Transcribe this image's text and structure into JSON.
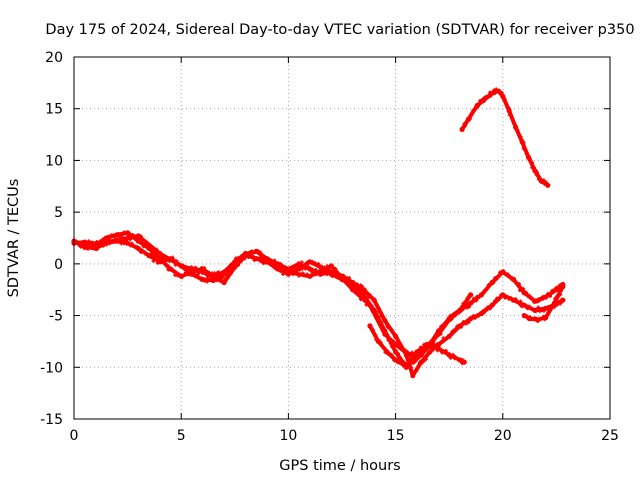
{
  "chart_data": {
    "type": "scatter",
    "title": "Day 175 of 2024, Sidereal Day-to-day VTEC variation (SDTVAR) for receiver p350",
    "xlabel": "GPS time / hours",
    "ylabel": "SDTVAR / TECUs",
    "xlim": [
      0,
      25
    ],
    "ylim": [
      -15,
      20
    ],
    "xticks": [
      0,
      5,
      10,
      15,
      20,
      25
    ],
    "yticks": [
      -15,
      -10,
      -5,
      0,
      5,
      10,
      15,
      20
    ],
    "grid": true,
    "series_color": "#ff0000",
    "series": [
      {
        "name": "trace-a",
        "x": [
          0,
          0.5,
          1,
          1.5,
          2,
          2.5,
          3,
          3.5,
          4,
          4.5,
          5,
          5.5,
          6,
          6.5,
          7,
          7.5,
          8,
          8.5,
          9,
          9.5,
          10,
          10.5,
          11,
          11.5,
          12,
          12.5,
          13,
          13.5,
          14,
          14.5,
          15,
          15.5,
          16,
          16.5,
          17,
          17.5,
          18,
          18.2
        ],
        "y": [
          2.0,
          2.1,
          1.8,
          2.5,
          2.8,
          3.0,
          2.2,
          1.5,
          0.5,
          -0.5,
          -1.2,
          -0.8,
          -0.5,
          -1.2,
          -0.8,
          0.2,
          1.0,
          0.5,
          0.2,
          -0.5,
          -1.0,
          -0.5,
          0.2,
          -0.3,
          -1.0,
          -1.5,
          -2.0,
          -3.0,
          -4.5,
          -6.5,
          -8.5,
          -10.0,
          -8.5,
          -7.8,
          -8.2,
          -8.8,
          -9.3,
          -9.5
        ]
      },
      {
        "name": "trace-b",
        "x": [
          0,
          0.5,
          1,
          1.5,
          2,
          2.5,
          3,
          3.5,
          4,
          4.5,
          5,
          5.5,
          6,
          6.5,
          7,
          7.5,
          8,
          8.5,
          9,
          9.5,
          10,
          10.5,
          11,
          11.5,
          12,
          12.5,
          13,
          13.5,
          14,
          14.5,
          15,
          15.5,
          15.8,
          16.2,
          16.6,
          17,
          17.5,
          18,
          18.5,
          19,
          19.5,
          20,
          20.5,
          21,
          21.5,
          22,
          22.5,
          22.8
        ],
        "y": [
          2.2,
          1.6,
          1.5,
          2.0,
          2.2,
          2.0,
          1.5,
          0.8,
          0.2,
          0.5,
          -0.2,
          -1.0,
          -1.5,
          -1.6,
          -1.0,
          0.0,
          0.8,
          1.2,
          0.5,
          0.0,
          -0.5,
          0.0,
          -0.5,
          -1.0,
          -0.8,
          -1.2,
          -1.8,
          -2.5,
          -3.5,
          -5.5,
          -7.0,
          -8.8,
          -10.8,
          -9.5,
          -8.5,
          -7.8,
          -7.0,
          -6.0,
          -5.3,
          -4.8,
          -4.0,
          -3.0,
          -3.5,
          -4.0,
          -4.5,
          -4.3,
          -3.9,
          -3.5
        ]
      },
      {
        "name": "trace-c",
        "x": [
          0.3,
          1,
          2,
          3,
          4,
          5,
          6,
          7,
          7.5,
          8,
          9,
          10,
          11,
          12,
          13,
          13.8,
          14.5,
          15,
          15.5,
          16,
          16.5,
          17,
          17.5,
          18,
          18.5,
          19,
          19.5,
          20,
          20.5,
          21,
          21.5,
          22,
          22.5,
          22.8
        ],
        "y": [
          1.8,
          1.8,
          2.3,
          2.7,
          1.0,
          -0.2,
          -0.8,
          -1.8,
          -0.3,
          0.8,
          0.3,
          -0.8,
          -1.2,
          -0.2,
          -2.5,
          -4.0,
          -6.8,
          -7.8,
          -8.6,
          -9.0,
          -8.0,
          -6.8,
          -5.4,
          -4.5,
          -3.8,
          -3.0,
          -1.8,
          -0.8,
          -1.5,
          -2.8,
          -3.6,
          -3.2,
          -2.5,
          -2.0
        ]
      },
      {
        "name": "trace-d",
        "x": [
          13.8,
          14.2,
          14.6,
          15.0,
          15.4,
          15.8,
          16.2,
          16.6,
          17.0,
          17.5,
          18.0,
          18.5
        ],
        "y": [
          -6.0,
          -7.5,
          -8.5,
          -9.3,
          -9.8,
          -9.5,
          -8.8,
          -7.8,
          -6.5,
          -5.3,
          -4.5,
          -3.0
        ]
      },
      {
        "name": "trace-e",
        "x": [
          21.0,
          21.3,
          21.6,
          22.0,
          22.4,
          22.8
        ],
        "y": [
          -5.0,
          -5.3,
          -5.4,
          -5.2,
          -3.8,
          -2.2
        ]
      },
      {
        "name": "trace-f",
        "x": [
          18.1,
          18.4,
          18.8,
          19.1,
          19.4,
          19.6,
          19.8,
          20.0,
          20.3,
          20.6,
          20.9,
          21.2,
          21.5,
          21.8,
          22.1
        ],
        "y": [
          13.0,
          14.0,
          15.3,
          15.8,
          16.3,
          16.6,
          16.7,
          16.2,
          14.8,
          13.2,
          11.8,
          10.3,
          9.0,
          8.0,
          7.6
        ]
      }
    ]
  }
}
